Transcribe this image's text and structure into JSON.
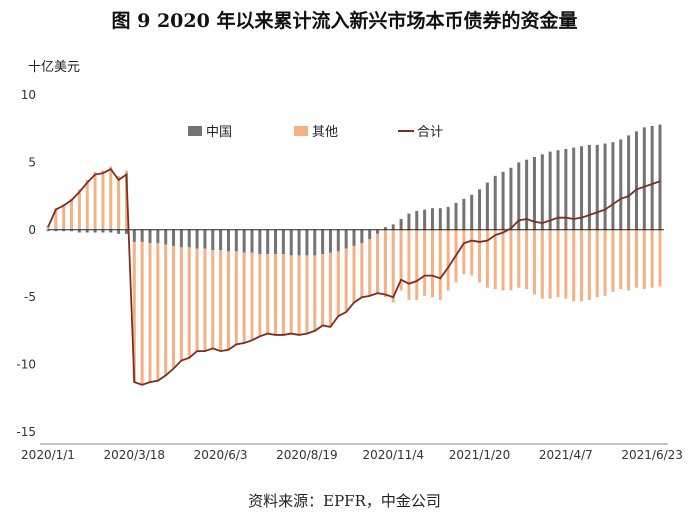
{
  "chart_data": {
    "type": "bar",
    "title": "图 9  2020 年以来累计流入新兴市场本币债券的资金量",
    "unit": "十亿美元",
    "source": "资料来源：EPFR，中金公司",
    "ylim": [
      -15,
      10
    ],
    "yticks": [
      10,
      5,
      0,
      -5,
      -10,
      -15
    ],
    "xticks": [
      "2020/1/1",
      "2020/3/18",
      "2020/6/3",
      "2020/8/19",
      "2020/11/4",
      "2021/1/20",
      "2021/4/7",
      "2021/6/23"
    ],
    "xtick_indices": [
      0,
      11,
      22,
      33,
      44,
      55,
      66,
      77
    ],
    "legend": [
      "中国",
      "其他",
      "合计"
    ],
    "colors": {
      "china": "#737373",
      "other": "#f4b183",
      "total": "#7b2e24"
    },
    "series": [
      {
        "name": "中国",
        "type": "bar",
        "values": [
          -0.1,
          -0.1,
          -0.1,
          -0.1,
          -0.2,
          -0.2,
          -0.2,
          -0.2,
          -0.2,
          -0.3,
          -0.3,
          -0.9,
          -0.9,
          -1.0,
          -1.0,
          -1.1,
          -1.2,
          -1.3,
          -1.3,
          -1.4,
          -1.4,
          -1.5,
          -1.5,
          -1.6,
          -1.6,
          -1.7,
          -1.7,
          -1.8,
          -1.8,
          -1.8,
          -1.8,
          -1.9,
          -1.9,
          -1.9,
          -1.9,
          -1.8,
          -1.7,
          -1.6,
          -1.4,
          -1.2,
          -1.0,
          -0.7,
          -0.3,
          0.2,
          0.4,
          0.8,
          1.2,
          1.4,
          1.5,
          1.6,
          1.6,
          1.7,
          2.0,
          2.3,
          2.6,
          3.0,
          3.5,
          4.0,
          4.3,
          4.6,
          5.0,
          5.2,
          5.4,
          5.6,
          5.8,
          5.9,
          6.0,
          6.1,
          6.2,
          6.3,
          6.3,
          6.4,
          6.5,
          6.7,
          7.0,
          7.3,
          7.6,
          7.7,
          7.8
        ]
      },
      {
        "name": "其他",
        "type": "bar",
        "values": [
          0.3,
          1.6,
          1.9,
          2.3,
          3.0,
          3.7,
          4.3,
          4.4,
          4.7,
          4.0,
          4.4,
          -10.4,
          -10.6,
          -10.3,
          -10.2,
          -9.7,
          -9.1,
          -8.4,
          -8.2,
          -7.6,
          -7.6,
          -7.3,
          -7.5,
          -7.3,
          -6.9,
          -6.7,
          -6.5,
          -6.1,
          -5.9,
          -6.0,
          -6.0,
          -5.8,
          -5.9,
          -5.8,
          -5.6,
          -5.3,
          -5.5,
          -4.8,
          -4.7,
          -4.2,
          -4.0,
          -4.2,
          -4.4,
          -5.0,
          -5.4,
          -4.5,
          -5.2,
          -5.2,
          -4.9,
          -5.0,
          -5.2,
          -4.5,
          -3.9,
          -3.3,
          -3.4,
          -3.9,
          -4.3,
          -4.4,
          -4.5,
          -4.5,
          -4.3,
          -4.4,
          -4.8,
          -5.1,
          -5.1,
          -5.0,
          -5.1,
          -5.3,
          -5.3,
          -5.2,
          -5.0,
          -4.9,
          -4.6,
          -4.4,
          -4.5,
          -4.3,
          -4.4,
          -4.3,
          -4.2
        ]
      },
      {
        "name": "合计",
        "type": "line",
        "values": [
          0.2,
          1.5,
          1.8,
          2.2,
          2.8,
          3.5,
          4.1,
          4.2,
          4.5,
          3.7,
          4.1,
          -11.3,
          -11.5,
          -11.3,
          -11.2,
          -10.8,
          -10.3,
          -9.7,
          -9.5,
          -9.0,
          -9.0,
          -8.8,
          -9.0,
          -8.9,
          -8.5,
          -8.4,
          -8.2,
          -7.9,
          -7.7,
          -7.8,
          -7.8,
          -7.7,
          -7.8,
          -7.7,
          -7.5,
          -7.1,
          -7.2,
          -6.4,
          -6.1,
          -5.4,
          -5.0,
          -4.9,
          -4.7,
          -4.8,
          -5.0,
          -3.7,
          -4.0,
          -3.8,
          -3.4,
          -3.4,
          -3.6,
          -2.8,
          -1.9,
          -1.0,
          -0.8,
          -0.9,
          -0.8,
          -0.4,
          -0.2,
          0.1,
          0.7,
          0.8,
          0.6,
          0.5,
          0.7,
          0.9,
          0.9,
          0.8,
          0.9,
          1.1,
          1.3,
          1.5,
          1.9,
          2.3,
          2.5,
          3.0,
          3.2,
          3.4,
          3.6
        ]
      }
    ]
  }
}
